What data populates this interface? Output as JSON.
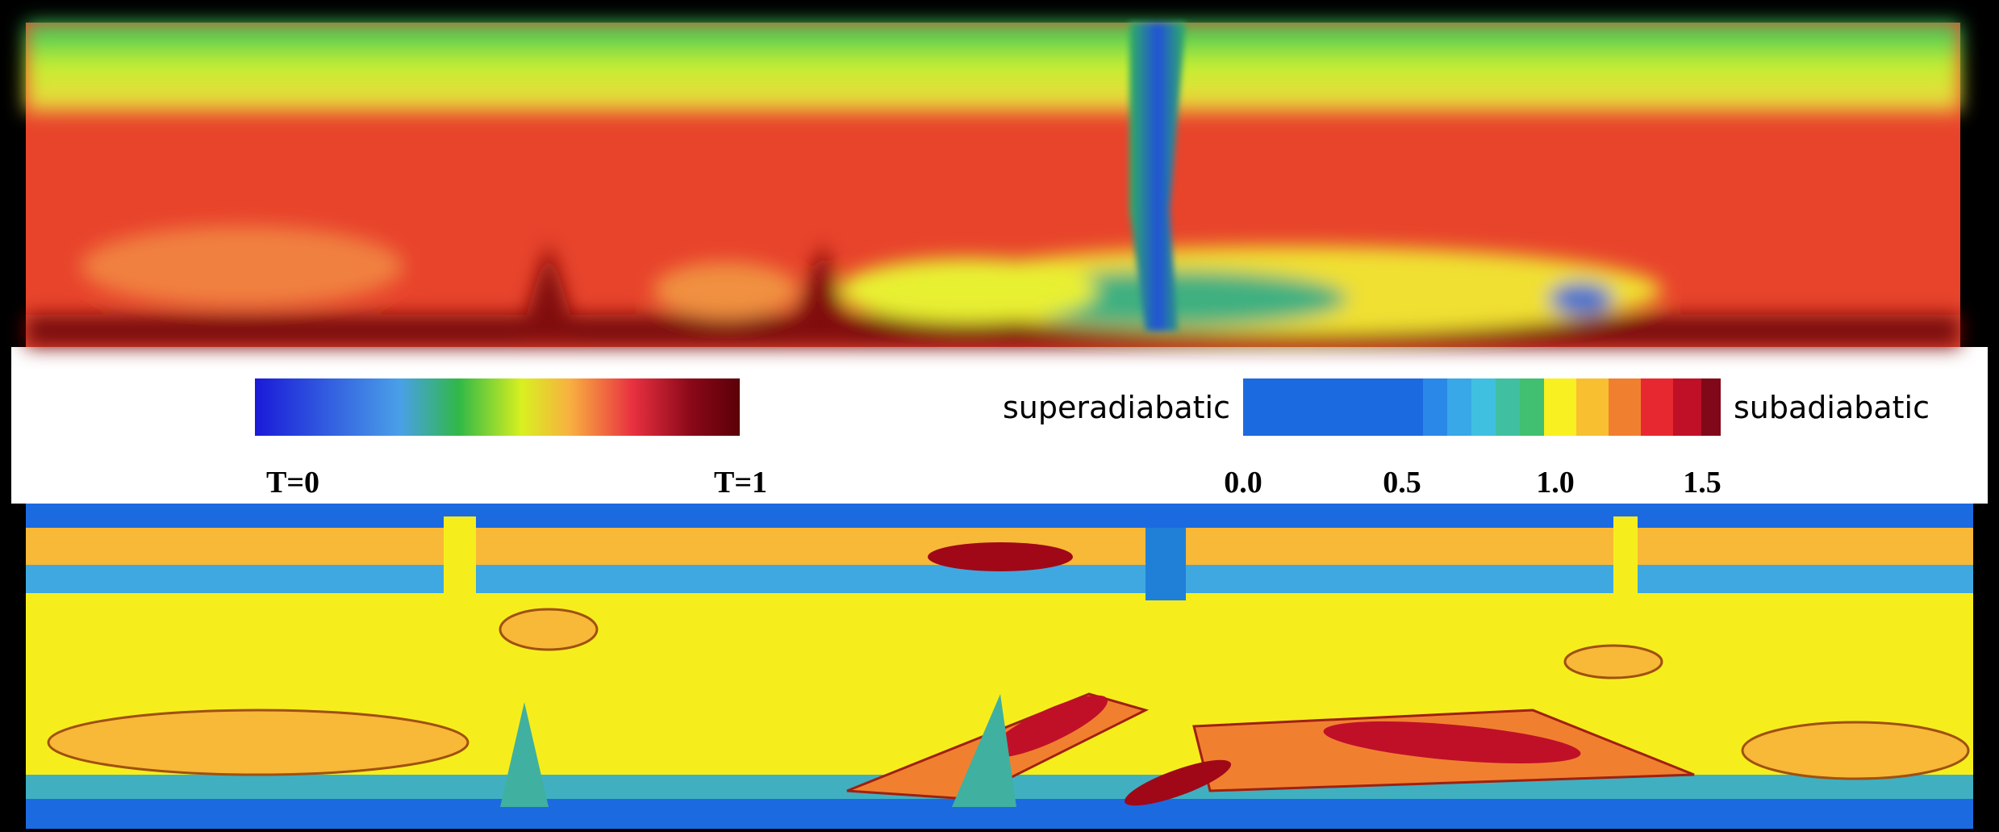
{
  "temperature_colorbar": {
    "min_label": "T=0",
    "max_label": "T=1"
  },
  "stability_colorbar": {
    "left_label": "superadiabatic",
    "right_label": "subadiabatic",
    "tick_labels": [
      "0.0",
      "0.5",
      "1.0",
      "1.5"
    ]
  }
}
